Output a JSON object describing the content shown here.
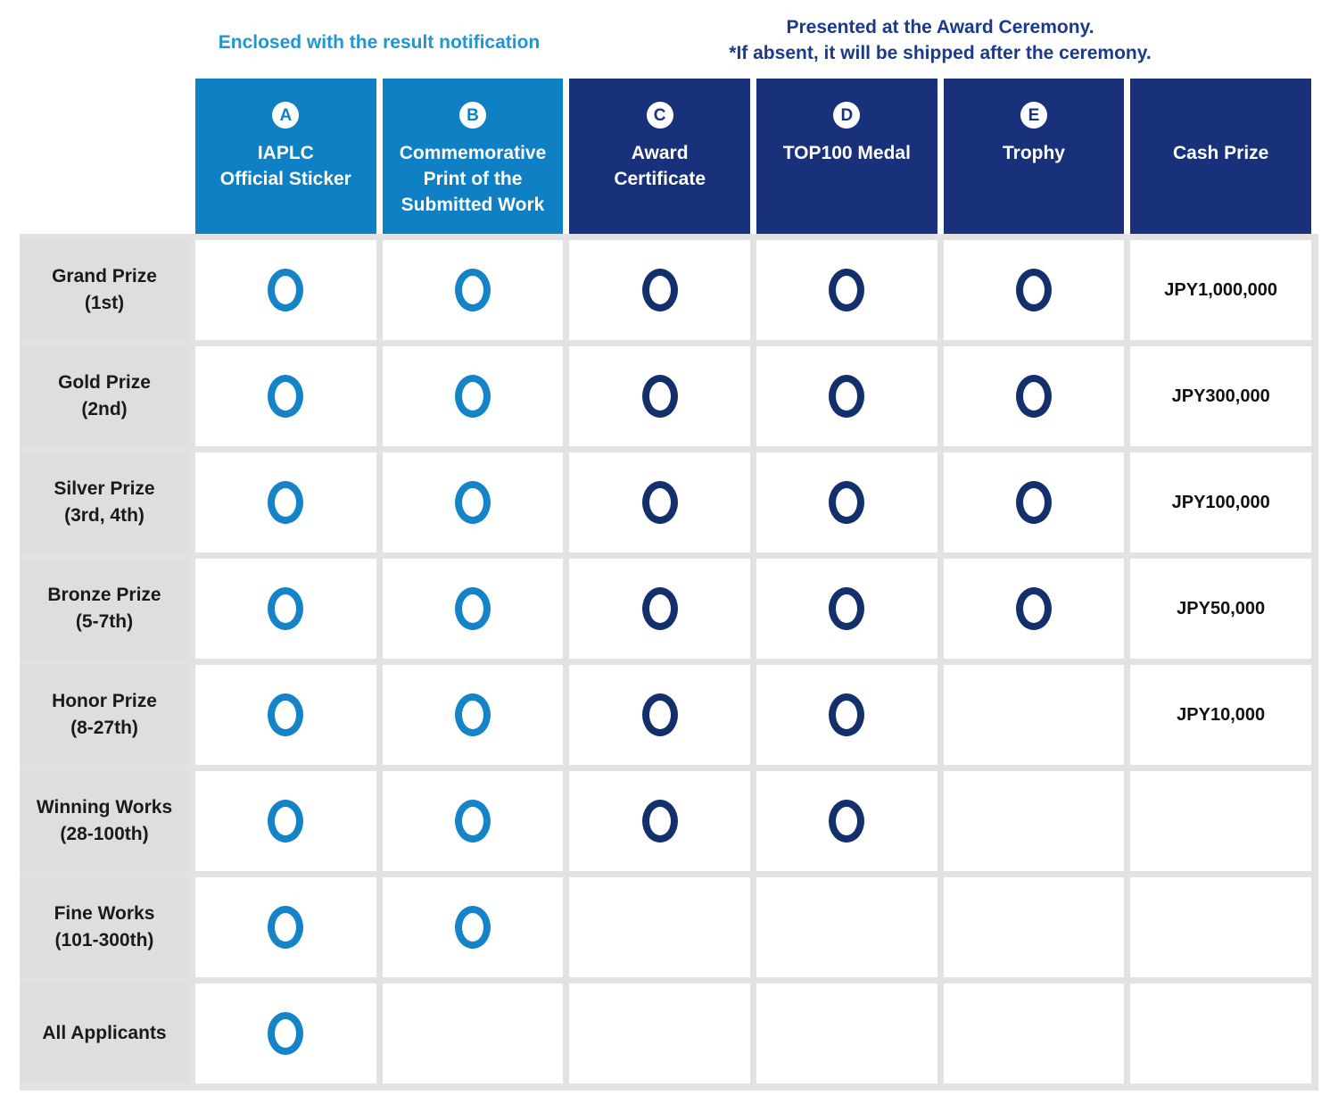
{
  "annotations": {
    "left": "Enclosed with the result notification",
    "right_line1": "Presented at the Award Ceremony.",
    "right_line2": "*If absent, it will be shipped after the ceremony."
  },
  "columns": [
    {
      "badge": "A",
      "label": "IAPLC\nOfficial Sticker",
      "theme": "light"
    },
    {
      "badge": "B",
      "label": "Commemorative\nPrint of the\nSubmitted Work",
      "theme": "light"
    },
    {
      "badge": "C",
      "label": "Award\nCertificate",
      "theme": "dark"
    },
    {
      "badge": "D",
      "label": "TOP100 Medal",
      "theme": "dark"
    },
    {
      "badge": "E",
      "label": "Trophy",
      "theme": "dark"
    },
    {
      "badge": "",
      "label": "Cash Prize",
      "theme": "dark"
    }
  ],
  "rows": [
    {
      "label_line1": "Grand Prize",
      "label_line2": "(1st)",
      "marks": [
        true,
        true,
        true,
        true,
        true
      ],
      "cash": "JPY1,000,000"
    },
    {
      "label_line1": "Gold Prize",
      "label_line2": "(2nd)",
      "marks": [
        true,
        true,
        true,
        true,
        true
      ],
      "cash": "JPY300,000"
    },
    {
      "label_line1": "Silver Prize",
      "label_line2": "(3rd, 4th)",
      "marks": [
        true,
        true,
        true,
        true,
        true
      ],
      "cash": "JPY100,000"
    },
    {
      "label_line1": "Bronze Prize",
      "label_line2": "(5-7th)",
      "marks": [
        true,
        true,
        true,
        true,
        true
      ],
      "cash": "JPY50,000"
    },
    {
      "label_line1": "Honor Prize",
      "label_line2": "(8-27th)",
      "marks": [
        true,
        true,
        true,
        true,
        false
      ],
      "cash": "JPY10,000"
    },
    {
      "label_line1": "Winning Works",
      "label_line2": "(28-100th)",
      "marks": [
        true,
        true,
        true,
        true,
        false
      ],
      "cash": ""
    },
    {
      "label_line1": "Fine Works",
      "label_line2": "(101-300th)",
      "marks": [
        true,
        true,
        false,
        false,
        false
      ],
      "cash": ""
    },
    {
      "label_line1": "All Applicants",
      "label_line2": "",
      "marks": [
        true,
        false,
        false,
        false,
        false
      ],
      "cash": ""
    }
  ],
  "colors": {
    "light_header_bg": "#0E80C3",
    "dark_header_bg": "#18317A",
    "light_circle": "#1483C7",
    "dark_circle": "#13306C",
    "annotation_left_text": "#1E96D3",
    "annotation_right_text": "#1B3A8C",
    "row_label_bg": "#DEDEDE",
    "gutter": "#E2E2E2",
    "header_text": "#FFFFFF",
    "cash_text": "#111111"
  },
  "chart_data": {
    "type": "table",
    "title": "IAPLC prize benefits matrix",
    "columns": [
      "IAPLC Official Sticker",
      "Commemorative Print of the Submitted Work",
      "Award Certificate",
      "TOP100 Medal",
      "Trophy",
      "Cash Prize"
    ],
    "row_labels": [
      "Grand Prize (1st)",
      "Gold Prize (2nd)",
      "Silver Prize (3rd, 4th)",
      "Bronze Prize (5-7th)",
      "Honor Prize (8-27th)",
      "Winning Works (28-100th)",
      "Fine Works (101-300th)",
      "All Applicants"
    ],
    "matrix": [
      [
        true,
        true,
        true,
        true,
        true
      ],
      [
        true,
        true,
        true,
        true,
        true
      ],
      [
        true,
        true,
        true,
        true,
        true
      ],
      [
        true,
        true,
        true,
        true,
        true
      ],
      [
        true,
        true,
        true,
        true,
        false
      ],
      [
        true,
        true,
        true,
        true,
        false
      ],
      [
        true,
        true,
        false,
        false,
        false
      ],
      [
        true,
        false,
        false,
        false,
        false
      ]
    ],
    "cash_prizes": [
      "JPY1,000,000",
      "JPY300,000",
      "JPY100,000",
      "JPY50,000",
      "JPY10,000",
      "",
      "",
      ""
    ]
  }
}
